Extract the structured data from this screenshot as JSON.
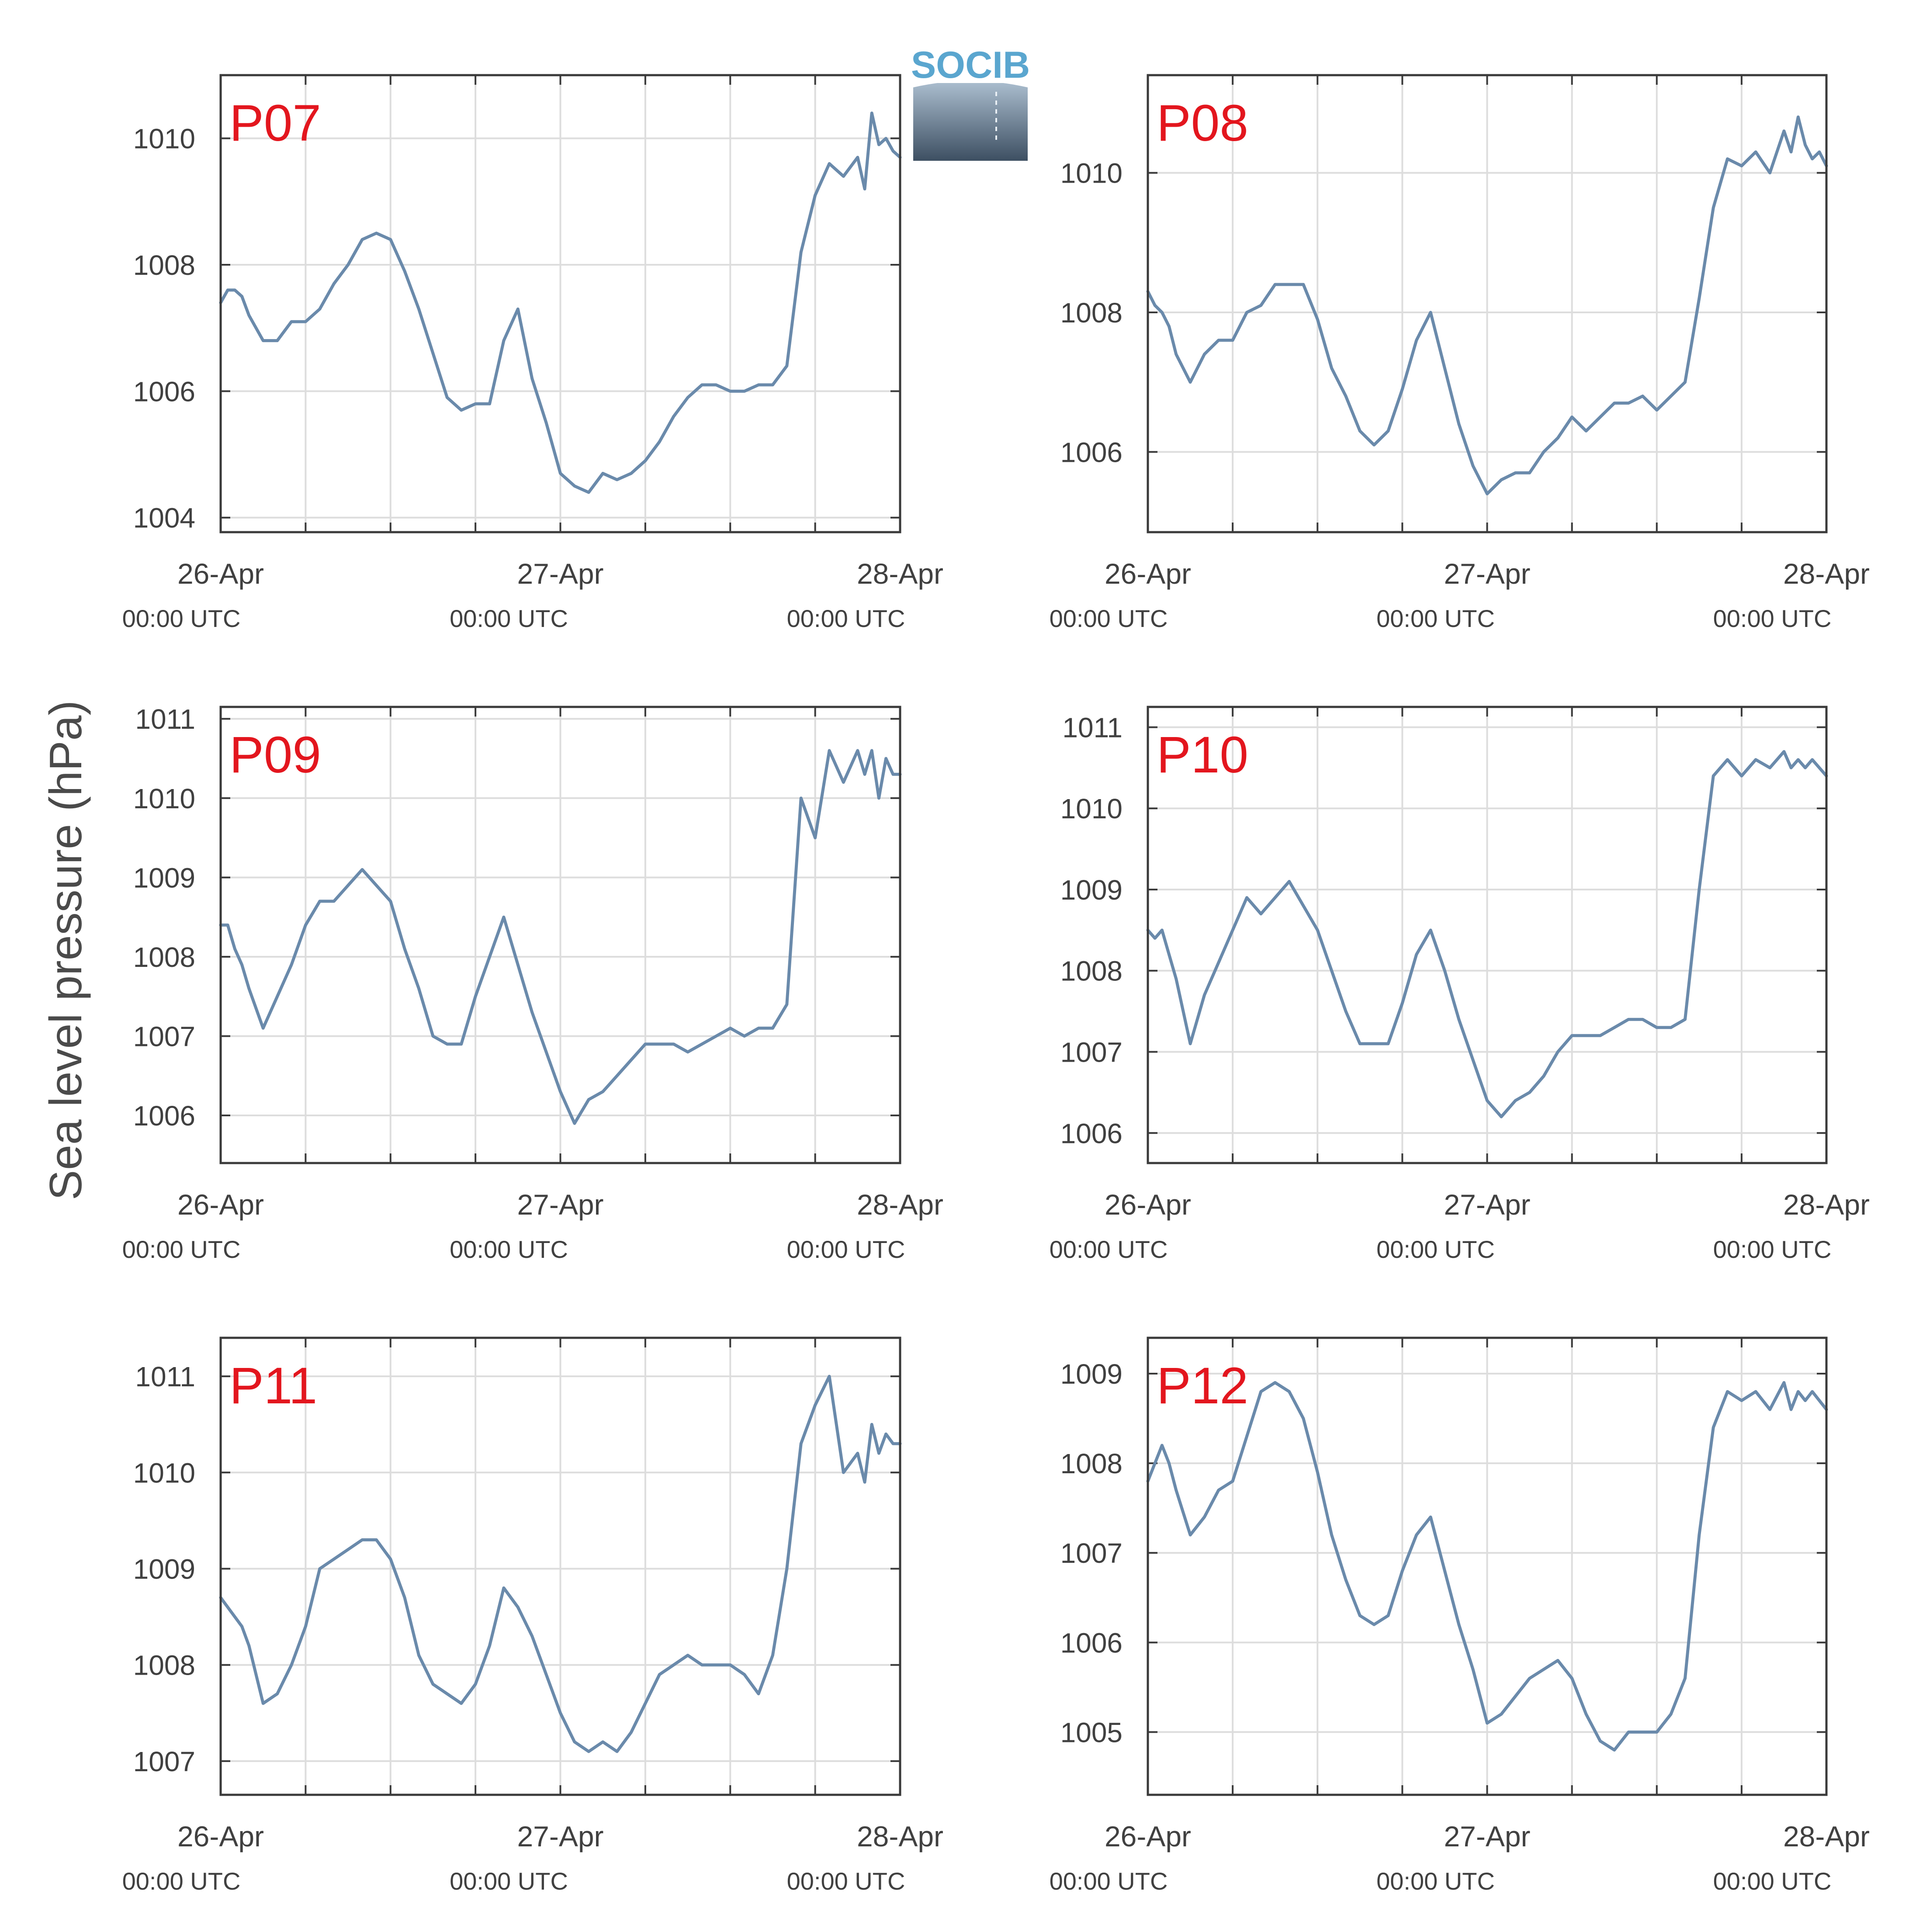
{
  "figure": {
    "y_axis_label": "Sea level pressure (hPa)",
    "logo_text": "SOCIB",
    "line_color": "#6a8aab",
    "title_color": "#e3161e",
    "grid_color": "#dddddd",
    "axis_color": "#3a3a3a"
  },
  "chart_data": [
    {
      "type": "line",
      "title": "P07",
      "x_tick_labels": [
        "26-Apr",
        "27-Apr",
        "28-Apr"
      ],
      "x_tick_sublabels": [
        "00:00 UTC",
        "00:00 UTC",
        "00:00 UTC"
      ],
      "x_range_hours": [
        0,
        48
      ],
      "ylim": [
        1003.77,
        1011
      ],
      "yticks": [
        1004,
        1006,
        1008,
        1010
      ],
      "series": [
        {
          "x_hours": [
            0,
            0.5,
            1,
            1.5,
            2,
            3,
            4,
            5,
            6,
            7,
            8,
            9,
            10,
            11,
            12,
            13,
            14,
            15,
            16,
            17,
            18,
            19,
            20,
            21,
            22,
            23,
            24,
            25,
            26,
            27,
            28,
            29,
            30,
            31,
            32,
            33,
            34,
            35,
            36,
            37,
            38,
            39,
            40,
            41,
            42,
            43,
            44,
            45,
            45.5,
            46,
            46.5,
            47,
            47.5,
            48
          ],
          "values": [
            1007.4,
            1007.6,
            1007.6,
            1007.5,
            1007.2,
            1006.8,
            1006.8,
            1007.1,
            1007.1,
            1007.3,
            1007.7,
            1008.0,
            1008.4,
            1008.5,
            1008.4,
            1007.9,
            1007.3,
            1006.6,
            1005.9,
            1005.7,
            1005.8,
            1005.8,
            1006.8,
            1007.3,
            1006.2,
            1005.5,
            1004.7,
            1004.5,
            1004.4,
            1004.7,
            1004.6,
            1004.7,
            1004.9,
            1005.2,
            1005.6,
            1005.9,
            1006.1,
            1006.1,
            1006.0,
            1006.0,
            1006.1,
            1006.1,
            1006.4,
            1008.2,
            1009.1,
            1009.6,
            1009.4,
            1009.7,
            1009.2,
            1010.4,
            1009.9,
            1010.0,
            1009.8,
            1009.7
          ]
        }
      ]
    },
    {
      "type": "line",
      "title": "P08",
      "x_tick_labels": [
        "26-Apr",
        "27-Apr",
        "28-Apr"
      ],
      "x_tick_sublabels": [
        "00:00 UTC",
        "00:00 UTC",
        "00:00 UTC"
      ],
      "x_range_hours": [
        0,
        48
      ],
      "ylim": [
        1004.85,
        1011.4
      ],
      "yticks": [
        1006,
        1008,
        1010
      ],
      "series": [
        {
          "x_hours": [
            0,
            0.5,
            1,
            1.5,
            2,
            3,
            4,
            5,
            6,
            7,
            8,
            9,
            10,
            11,
            12,
            13,
            14,
            15,
            16,
            17,
            18,
            19,
            20,
            21,
            22,
            23,
            24,
            25,
            26,
            27,
            28,
            29,
            30,
            31,
            32,
            33,
            34,
            35,
            36,
            37,
            38,
            39,
            40,
            41,
            42,
            43,
            44,
            45,
            45.5,
            46,
            46.5,
            47,
            47.5,
            48
          ],
          "values": [
            1008.3,
            1008.1,
            1008.0,
            1007.8,
            1007.4,
            1007.0,
            1007.4,
            1007.6,
            1007.6,
            1008.0,
            1008.1,
            1008.4,
            1008.4,
            1008.4,
            1007.9,
            1007.2,
            1006.8,
            1006.3,
            1006.1,
            1006.3,
            1006.9,
            1007.6,
            1008.0,
            1007.2,
            1006.4,
            1005.8,
            1005.4,
            1005.6,
            1005.7,
            1005.7,
            1006.0,
            1006.2,
            1006.5,
            1006.3,
            1006.5,
            1006.7,
            1006.7,
            1006.8,
            1006.6,
            1006.8,
            1007.0,
            1008.2,
            1009.5,
            1010.2,
            1010.1,
            1010.3,
            1010.0,
            1010.6,
            1010.3,
            1010.8,
            1010.4,
            1010.2,
            1010.3,
            1010.1
          ]
        }
      ]
    },
    {
      "type": "line",
      "title": "P09",
      "x_tick_labels": [
        "26-Apr",
        "27-Apr",
        "28-Apr"
      ],
      "x_tick_sublabels": [
        "00:00 UTC",
        "00:00 UTC",
        "00:00 UTC"
      ],
      "x_range_hours": [
        0,
        48
      ],
      "ylim": [
        1005.4,
        1011.15
      ],
      "yticks": [
        1006,
        1007,
        1008,
        1009,
        1010,
        1011
      ],
      "series": [
        {
          "x_hours": [
            0,
            0.5,
            1,
            1.5,
            2,
            3,
            4,
            5,
            6,
            7,
            8,
            9,
            10,
            11,
            12,
            13,
            14,
            15,
            16,
            17,
            18,
            19,
            20,
            21,
            22,
            23,
            24,
            25,
            26,
            27,
            28,
            29,
            30,
            31,
            32,
            33,
            34,
            35,
            36,
            37,
            38,
            39,
            40,
            41,
            42,
            43,
            44,
            45,
            45.5,
            46,
            46.5,
            47,
            47.5,
            48
          ],
          "values": [
            1008.4,
            1008.4,
            1008.1,
            1007.9,
            1007.6,
            1007.1,
            1007.5,
            1007.9,
            1008.4,
            1008.7,
            1008.7,
            1008.9,
            1009.1,
            1008.9,
            1008.7,
            1008.1,
            1007.6,
            1007.0,
            1006.9,
            1006.9,
            1007.5,
            1008.0,
            1008.5,
            1007.9,
            1007.3,
            1006.8,
            1006.3,
            1005.9,
            1006.2,
            1006.3,
            1006.5,
            1006.7,
            1006.9,
            1006.9,
            1006.9,
            1006.8,
            1006.9,
            1007.0,
            1007.1,
            1007.0,
            1007.1,
            1007.1,
            1007.4,
            1010.0,
            1009.5,
            1010.6,
            1010.2,
            1010.6,
            1010.3,
            1010.6,
            1010.0,
            1010.5,
            1010.3,
            1010.3
          ]
        }
      ]
    },
    {
      "type": "line",
      "title": "P10",
      "x_tick_labels": [
        "26-Apr",
        "27-Apr",
        "28-Apr"
      ],
      "x_tick_sublabels": [
        "00:00 UTC",
        "00:00 UTC",
        "00:00 UTC"
      ],
      "x_range_hours": [
        0,
        48
      ],
      "ylim": [
        1005.63,
        1011.25
      ],
      "yticks": [
        1006,
        1007,
        1008,
        1009,
        1010,
        1011
      ],
      "series": [
        {
          "x_hours": [
            0,
            0.5,
            1,
            1.5,
            2,
            3,
            4,
            5,
            6,
            7,
            8,
            9,
            10,
            11,
            12,
            13,
            14,
            15,
            16,
            17,
            18,
            19,
            20,
            21,
            22,
            23,
            24,
            25,
            26,
            27,
            28,
            29,
            30,
            31,
            32,
            33,
            34,
            35,
            36,
            37,
            38,
            39,
            40,
            41,
            42,
            43,
            44,
            45,
            45.5,
            46,
            46.5,
            47,
            47.5,
            48
          ],
          "values": [
            1008.5,
            1008.4,
            1008.5,
            1008.2,
            1007.9,
            1007.1,
            1007.7,
            1008.1,
            1008.5,
            1008.9,
            1008.7,
            1008.9,
            1009.1,
            1008.8,
            1008.5,
            1008.0,
            1007.5,
            1007.1,
            1007.1,
            1007.1,
            1007.6,
            1008.2,
            1008.5,
            1008.0,
            1007.4,
            1006.9,
            1006.4,
            1006.2,
            1006.4,
            1006.5,
            1006.7,
            1007.0,
            1007.2,
            1007.2,
            1007.2,
            1007.3,
            1007.4,
            1007.4,
            1007.3,
            1007.3,
            1007.4,
            1009.0,
            1010.4,
            1010.6,
            1010.4,
            1010.6,
            1010.5,
            1010.7,
            1010.5,
            1010.6,
            1010.5,
            1010.6,
            1010.5,
            1010.4
          ]
        }
      ]
    },
    {
      "type": "line",
      "title": "P11",
      "x_tick_labels": [
        "26-Apr",
        "27-Apr",
        "28-Apr"
      ],
      "x_tick_sublabels": [
        "00:00 UTC",
        "00:00 UTC",
        "00:00 UTC"
      ],
      "x_range_hours": [
        0,
        48
      ],
      "ylim": [
        1006.65,
        1011.4
      ],
      "yticks": [
        1007,
        1008,
        1009,
        1010,
        1011
      ],
      "series": [
        {
          "x_hours": [
            0,
            0.5,
            1,
            1.5,
            2,
            3,
            4,
            5,
            6,
            7,
            8,
            9,
            10,
            11,
            12,
            13,
            14,
            15,
            16,
            17,
            18,
            19,
            20,
            21,
            22,
            23,
            24,
            25,
            26,
            27,
            28,
            29,
            30,
            31,
            32,
            33,
            34,
            35,
            36,
            37,
            38,
            39,
            40,
            41,
            42,
            43,
            44,
            45,
            45.5,
            46,
            46.5,
            47,
            47.5,
            48
          ],
          "values": [
            1008.7,
            1008.6,
            1008.5,
            1008.4,
            1008.2,
            1007.6,
            1007.7,
            1008.0,
            1008.4,
            1009.0,
            1009.1,
            1009.2,
            1009.3,
            1009.3,
            1009.1,
            1008.7,
            1008.1,
            1007.8,
            1007.7,
            1007.6,
            1007.8,
            1008.2,
            1008.8,
            1008.6,
            1008.3,
            1007.9,
            1007.5,
            1007.2,
            1007.1,
            1007.2,
            1007.1,
            1007.3,
            1007.6,
            1007.9,
            1008.0,
            1008.1,
            1008.0,
            1008.0,
            1008.0,
            1007.9,
            1007.7,
            1008.1,
            1009.0,
            1010.3,
            1010.7,
            1011.0,
            1010.0,
            1010.2,
            1009.9,
            1010.5,
            1010.2,
            1010.4,
            1010.3,
            1010.3
          ]
        }
      ]
    },
    {
      "type": "line",
      "title": "P12",
      "x_tick_labels": [
        "26-Apr",
        "27-Apr",
        "28-Apr"
      ],
      "x_tick_sublabels": [
        "00:00 UTC",
        "00:00 UTC",
        "00:00 UTC"
      ],
      "x_range_hours": [
        0,
        48
      ],
      "ylim": [
        1004.3,
        1009.4
      ],
      "yticks": [
        1005,
        1006,
        1007,
        1008,
        1009
      ],
      "series": [
        {
          "x_hours": [
            0,
            0.5,
            1,
            1.5,
            2,
            3,
            4,
            5,
            6,
            7,
            8,
            9,
            10,
            11,
            12,
            13,
            14,
            15,
            16,
            17,
            18,
            19,
            20,
            21,
            22,
            23,
            24,
            25,
            26,
            27,
            28,
            29,
            30,
            31,
            32,
            33,
            34,
            35,
            36,
            37,
            38,
            39,
            40,
            41,
            42,
            43,
            44,
            45,
            45.5,
            46,
            46.5,
            47,
            47.5,
            48
          ],
          "values": [
            1007.8,
            1008.0,
            1008.2,
            1008.0,
            1007.7,
            1007.2,
            1007.4,
            1007.7,
            1007.8,
            1008.3,
            1008.8,
            1008.9,
            1008.8,
            1008.5,
            1007.9,
            1007.2,
            1006.7,
            1006.3,
            1006.2,
            1006.3,
            1006.8,
            1007.2,
            1007.4,
            1006.8,
            1006.2,
            1005.7,
            1005.1,
            1005.2,
            1005.4,
            1005.6,
            1005.7,
            1005.8,
            1005.6,
            1005.2,
            1004.9,
            1004.8,
            1005.0,
            1005.0,
            1005.0,
            1005.2,
            1005.6,
            1007.2,
            1008.4,
            1008.8,
            1008.7,
            1008.8,
            1008.6,
            1008.9,
            1008.6,
            1008.8,
            1008.7,
            1008.8,
            1008.7,
            1008.6
          ]
        }
      ]
    }
  ]
}
